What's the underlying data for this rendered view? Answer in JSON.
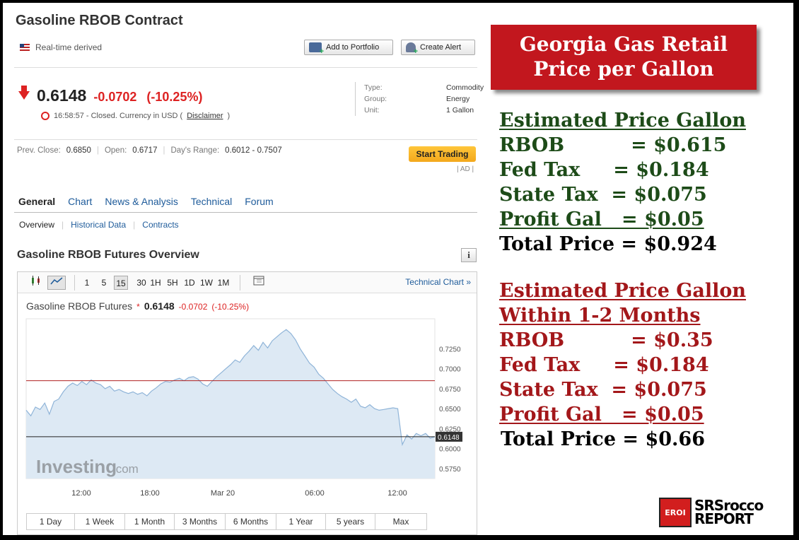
{
  "header": {
    "title": "Gasoline RBOB Contract",
    "realtime": "Real-time derived",
    "add_portfolio": "Add to Portfolio",
    "create_alert": "Create Alert"
  },
  "quote": {
    "last": "0.6148",
    "change": "-0.0702",
    "change_pct": "(-10.25%)",
    "time_status": "16:58:57 - Closed. Currency in USD (",
    "disclaimer": "Disclaimer",
    "close_paren": ")"
  },
  "meta": {
    "type_label": "Type:",
    "type_value": "Commodity",
    "group_label": "Group:",
    "group_value": "Energy",
    "unit_label": "Unit:",
    "unit_value": "1 Gallon"
  },
  "stats": {
    "prev_close_label": "Prev. Close:",
    "prev_close": "0.6850",
    "open_label": "Open:",
    "open": "0.6717",
    "range_label": "Day's Range:",
    "range": "0.6012 - 0.7507"
  },
  "trade": {
    "label": "Start Trading",
    "ad": "| AD |"
  },
  "tabs": [
    "General",
    "Chart",
    "News & Analysis",
    "Technical",
    "Forum"
  ],
  "subtabs": [
    "Overview",
    "Historical Data",
    "Contracts"
  ],
  "overview": {
    "title": "Gasoline RBOB Futures Overview",
    "info": "i"
  },
  "chart_toolbar": {
    "intervals": [
      "1",
      "5",
      "15",
      "30",
      "1H",
      "5H",
      "1D",
      "1W",
      "1M"
    ],
    "selected": "15",
    "technical_link": "Technical Chart »"
  },
  "chart_header": {
    "name": "Gasoline RBOB Futures",
    "star": "*",
    "last": "0.6148",
    "change": "-0.0702",
    "change_pct": "(-10.25%)"
  },
  "chart_data": {
    "type": "area",
    "x_tick_labels": [
      "12:00",
      "18:00",
      "Mar 20",
      "06:00",
      "12:00"
    ],
    "y_tick_labels": [
      "0.7250",
      "0.7000",
      "0.6750",
      "0.6500",
      "0.6250",
      "0.6000",
      "0.5750"
    ],
    "ylim": [
      0.5625,
      0.7625
    ],
    "prev_close_line": 0.685,
    "last_value_label": "0.6148",
    "watermark_main": "Investing",
    "watermark_suffix": ".com",
    "series": [
      {
        "values": [
          0.648,
          0.641,
          0.652,
          0.649,
          0.657,
          0.643,
          0.659,
          0.662,
          0.671,
          0.678,
          0.682,
          0.679,
          0.684,
          0.68,
          0.686,
          0.682,
          0.68,
          0.675,
          0.678,
          0.672,
          0.674,
          0.671,
          0.669,
          0.671,
          0.668,
          0.67,
          0.666,
          0.672,
          0.676,
          0.681,
          0.684,
          0.683,
          0.686,
          0.688,
          0.685,
          0.689,
          0.69,
          0.687,
          0.681,
          0.678,
          0.684,
          0.69,
          0.695,
          0.7,
          0.705,
          0.711,
          0.708,
          0.716,
          0.722,
          0.729,
          0.723,
          0.733,
          0.726,
          0.735,
          0.74,
          0.745,
          0.749,
          0.744,
          0.736,
          0.725,
          0.716,
          0.707,
          0.702,
          0.693,
          0.688,
          0.681,
          0.674,
          0.669,
          0.665,
          0.662,
          0.658,
          0.662,
          0.653,
          0.651,
          0.655,
          0.65,
          0.648,
          0.649,
          0.65,
          0.651,
          0.65,
          0.605,
          0.617,
          0.612,
          0.619,
          0.616,
          0.619,
          0.613,
          0.6148
        ]
      }
    ]
  },
  "ranges": [
    "1 Day",
    "1 Week",
    "1 Month",
    "3 Months",
    "6 Months",
    "1 Year",
    "5 years",
    "Max"
  ],
  "banner": {
    "line1": "Georgia Gas Retail",
    "line2": "Price per Gallon"
  },
  "estimate_now": {
    "heading": "Estimated Price Gallon",
    "rows": [
      "RBOB          = $0.615",
      "Fed Tax     = $0.184",
      "State Tax  = $0.075",
      "Profit Gal   = $0.05"
    ],
    "total": "Total Price = $0.924"
  },
  "estimate_future": {
    "heading": "Estimated Price Gallon",
    "heading2": "Within 1-2 Months",
    "rows": [
      "RBOB          = $0.35",
      "Fed Tax     = $0.184",
      "State Tax  = $0.075",
      "Profit Gal   = $0.05"
    ],
    "total": "Total Price = $0.66"
  },
  "logo": {
    "badge": "EROI",
    "line1": "SRSrocco",
    "line2": "REPORT"
  }
}
